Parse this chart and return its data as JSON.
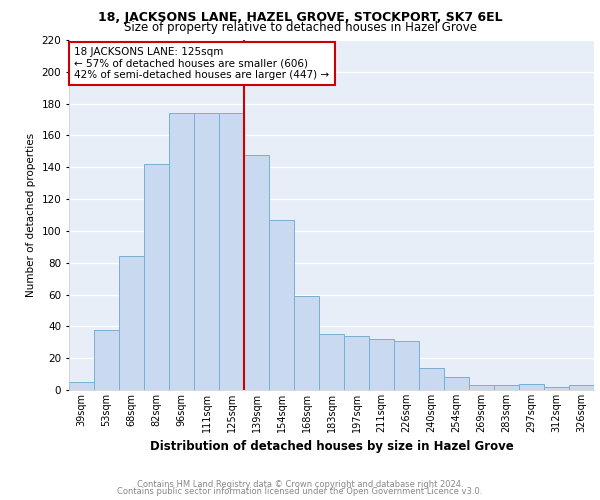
{
  "title1": "18, JACKSONS LANE, HAZEL GROVE, STOCKPORT, SK7 6EL",
  "title2": "Size of property relative to detached houses in Hazel Grove",
  "xlabel": "Distribution of detached houses by size in Hazel Grove",
  "ylabel": "Number of detached properties",
  "footer1": "Contains HM Land Registry data © Crown copyright and database right 2024.",
  "footer2": "Contains public sector information licensed under the Open Government Licence v3.0.",
  "annotation_line1": "18 JACKSONS LANE: 125sqm",
  "annotation_line2": "← 57% of detached houses are smaller (606)",
  "annotation_line3": "42% of semi-detached houses are larger (447) →",
  "categories": [
    "39sqm",
    "53sqm",
    "68sqm",
    "82sqm",
    "96sqm",
    "111sqm",
    "125sqm",
    "139sqm",
    "154sqm",
    "168sqm",
    "183sqm",
    "197sqm",
    "211sqm",
    "226sqm",
    "240sqm",
    "254sqm",
    "269sqm",
    "283sqm",
    "297sqm",
    "312sqm",
    "326sqm"
  ],
  "values": [
    5,
    38,
    84,
    142,
    174,
    174,
    174,
    148,
    107,
    59,
    35,
    34,
    32,
    31,
    14,
    8,
    3,
    3,
    4,
    2,
    3
  ],
  "bar_color": "#c9d9ef",
  "bar_edge_color": "#7aaed4",
  "marker_color": "#cc0000",
  "ylim": [
    0,
    220
  ],
  "yticks": [
    0,
    20,
    40,
    60,
    80,
    100,
    120,
    140,
    160,
    180,
    200,
    220
  ],
  "background_color": "#e8eef8",
  "grid_color": "#ffffff",
  "title_fontsize": 9,
  "subtitle_fontsize": 8.5,
  "xlabel_fontsize": 8.5,
  "ylabel_fontsize": 7.5
}
